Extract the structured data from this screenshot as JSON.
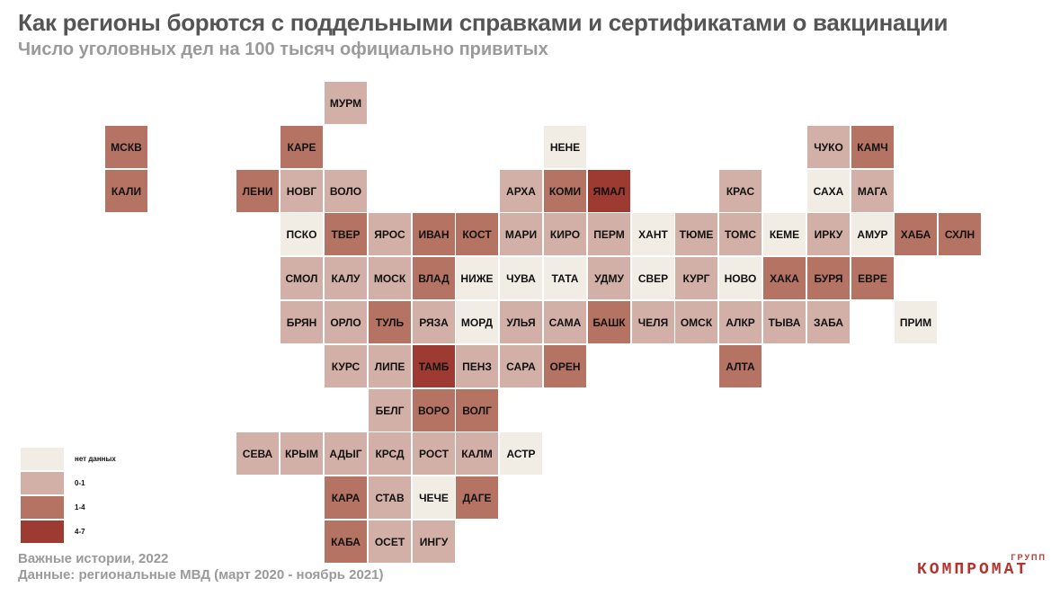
{
  "title": "Как регионы борются с поддельными справками и сертификатами о вакцинации",
  "subtitle": "Число уголовных дел на 100 тысяч официально привитых",
  "colors": {
    "nodata": "#f1ece4",
    "c0_1": "#d3b0a7",
    "c1_4": "#b57364",
    "c4_7": "#9d3a31"
  },
  "legend": [
    {
      "category": "nodata",
      "label": "нет данных"
    },
    {
      "category": "c0_1",
      "label": "0-1"
    },
    {
      "category": "c1_4",
      "label": "1-4"
    },
    {
      "category": "c4_7",
      "label": "4-7"
    }
  ],
  "regions": [
    {
      "code": "МУРМ",
      "col": 5,
      "row": 0,
      "cat": "c0_1"
    },
    {
      "code": "МСКВ",
      "col": 0,
      "row": 1,
      "cat": "c1_4"
    },
    {
      "code": "КАРЕ",
      "col": 4,
      "row": 1,
      "cat": "c1_4"
    },
    {
      "code": "НЕНЕ",
      "col": 10,
      "row": 1,
      "cat": "nodata"
    },
    {
      "code": "ЧУКО",
      "col": 16,
      "row": 1,
      "cat": "c0_1"
    },
    {
      "code": "КАМЧ",
      "col": 17,
      "row": 1,
      "cat": "c1_4"
    },
    {
      "code": "КАЛИ",
      "col": 0,
      "row": 2,
      "cat": "c1_4"
    },
    {
      "code": "ЛЕНИ",
      "col": 3,
      "row": 2,
      "cat": "c1_4"
    },
    {
      "code": "НОВГ",
      "col": 4,
      "row": 2,
      "cat": "c0_1"
    },
    {
      "code": "ВОЛО",
      "col": 5,
      "row": 2,
      "cat": "c0_1"
    },
    {
      "code": "АРХА",
      "col": 9,
      "row": 2,
      "cat": "c0_1"
    },
    {
      "code": "КОМИ",
      "col": 10,
      "row": 2,
      "cat": "c1_4"
    },
    {
      "code": "ЯМАЛ",
      "col": 11,
      "row": 2,
      "cat": "c4_7"
    },
    {
      "code": "КРАС",
      "col": 14,
      "row": 2,
      "cat": "c0_1"
    },
    {
      "code": "САХА",
      "col": 16,
      "row": 2,
      "cat": "nodata"
    },
    {
      "code": "МАГА",
      "col": 17,
      "row": 2,
      "cat": "c0_1"
    },
    {
      "code": "ПСКО",
      "col": 4,
      "row": 3,
      "cat": "nodata"
    },
    {
      "code": "ТВЕР",
      "col": 5,
      "row": 3,
      "cat": "c1_4"
    },
    {
      "code": "ЯРОС",
      "col": 6,
      "row": 3,
      "cat": "c0_1"
    },
    {
      "code": "ИВАН",
      "col": 7,
      "row": 3,
      "cat": "c1_4"
    },
    {
      "code": "КОСТ",
      "col": 8,
      "row": 3,
      "cat": "c1_4"
    },
    {
      "code": "МАРИ",
      "col": 9,
      "row": 3,
      "cat": "c0_1"
    },
    {
      "code": "КИРО",
      "col": 10,
      "row": 3,
      "cat": "c0_1"
    },
    {
      "code": "ПЕРМ",
      "col": 11,
      "row": 3,
      "cat": "c0_1"
    },
    {
      "code": "ХАНТ",
      "col": 12,
      "row": 3,
      "cat": "nodata"
    },
    {
      "code": "ТЮМЕ",
      "col": 13,
      "row": 3,
      "cat": "c0_1"
    },
    {
      "code": "ТОМС",
      "col": 14,
      "row": 3,
      "cat": "c0_1"
    },
    {
      "code": "КЕМЕ",
      "col": 15,
      "row": 3,
      "cat": "nodata"
    },
    {
      "code": "ИРКУ",
      "col": 16,
      "row": 3,
      "cat": "c0_1"
    },
    {
      "code": "АМУР",
      "col": 17,
      "row": 3,
      "cat": "nodata"
    },
    {
      "code": "ХАБА",
      "col": 18,
      "row": 3,
      "cat": "c1_4"
    },
    {
      "code": "СХЛН",
      "col": 19,
      "row": 3,
      "cat": "c1_4"
    },
    {
      "code": "СМОЛ",
      "col": 4,
      "row": 4,
      "cat": "c0_1"
    },
    {
      "code": "КАЛУ",
      "col": 5,
      "row": 4,
      "cat": "c0_1"
    },
    {
      "code": "МОСК",
      "col": 6,
      "row": 4,
      "cat": "c0_1"
    },
    {
      "code": "ВЛАД",
      "col": 7,
      "row": 4,
      "cat": "c1_4"
    },
    {
      "code": "НИЖЕ",
      "col": 8,
      "row": 4,
      "cat": "nodata"
    },
    {
      "code": "ЧУВА",
      "col": 9,
      "row": 4,
      "cat": "nodata"
    },
    {
      "code": "ТАТА",
      "col": 10,
      "row": 4,
      "cat": "nodata"
    },
    {
      "code": "УДМУ",
      "col": 11,
      "row": 4,
      "cat": "c0_1"
    },
    {
      "code": "СВЕР",
      "col": 12,
      "row": 4,
      "cat": "nodata"
    },
    {
      "code": "КУРГ",
      "col": 13,
      "row": 4,
      "cat": "c0_1"
    },
    {
      "code": "НОВО",
      "col": 14,
      "row": 4,
      "cat": "nodata"
    },
    {
      "code": "ХАКА",
      "col": 15,
      "row": 4,
      "cat": "c1_4"
    },
    {
      "code": "БУРЯ",
      "col": 16,
      "row": 4,
      "cat": "c1_4"
    },
    {
      "code": "ЕВРЕ",
      "col": 17,
      "row": 4,
      "cat": "c1_4"
    },
    {
      "code": "БРЯН",
      "col": 4,
      "row": 5,
      "cat": "c0_1"
    },
    {
      "code": "ОРЛО",
      "col": 5,
      "row": 5,
      "cat": "c0_1"
    },
    {
      "code": "ТУЛЬ",
      "col": 6,
      "row": 5,
      "cat": "c1_4"
    },
    {
      "code": "РЯЗА",
      "col": 7,
      "row": 5,
      "cat": "c0_1"
    },
    {
      "code": "МОРД",
      "col": 8,
      "row": 5,
      "cat": "nodata"
    },
    {
      "code": "УЛЬЯ",
      "col": 9,
      "row": 5,
      "cat": "c0_1"
    },
    {
      "code": "САМА",
      "col": 10,
      "row": 5,
      "cat": "c0_1"
    },
    {
      "code": "БАШК",
      "col": 11,
      "row": 5,
      "cat": "c1_4"
    },
    {
      "code": "ЧЕЛЯ",
      "col": 12,
      "row": 5,
      "cat": "c0_1"
    },
    {
      "code": "ОМСК",
      "col": 13,
      "row": 5,
      "cat": "c0_1"
    },
    {
      "code": "АЛКР",
      "col": 14,
      "row": 5,
      "cat": "c0_1"
    },
    {
      "code": "ТЫВА",
      "col": 15,
      "row": 5,
      "cat": "c0_1"
    },
    {
      "code": "ЗАБА",
      "col": 16,
      "row": 5,
      "cat": "c0_1"
    },
    {
      "code": "ПРИМ",
      "col": 18,
      "row": 5,
      "cat": "nodata"
    },
    {
      "code": "КУРС",
      "col": 5,
      "row": 6,
      "cat": "c0_1"
    },
    {
      "code": "ЛИПЕ",
      "col": 6,
      "row": 6,
      "cat": "c0_1"
    },
    {
      "code": "ТАМБ",
      "col": 7,
      "row": 6,
      "cat": "c4_7"
    },
    {
      "code": "ПЕНЗ",
      "col": 8,
      "row": 6,
      "cat": "c0_1"
    },
    {
      "code": "САРА",
      "col": 9,
      "row": 6,
      "cat": "c0_1"
    },
    {
      "code": "ОРЕН",
      "col": 10,
      "row": 6,
      "cat": "c1_4"
    },
    {
      "code": "АЛТА",
      "col": 14,
      "row": 6,
      "cat": "c1_4"
    },
    {
      "code": "БЕЛГ",
      "col": 6,
      "row": 7,
      "cat": "c0_1"
    },
    {
      "code": "ВОРО",
      "col": 7,
      "row": 7,
      "cat": "c1_4"
    },
    {
      "code": "ВОЛГ",
      "col": 8,
      "row": 7,
      "cat": "c1_4"
    },
    {
      "code": "СЕВА",
      "col": 3,
      "row": 8,
      "cat": "c0_1"
    },
    {
      "code": "КРЫМ",
      "col": 4,
      "row": 8,
      "cat": "c0_1"
    },
    {
      "code": "АДЫГ",
      "col": 5,
      "row": 8,
      "cat": "c0_1"
    },
    {
      "code": "КРСД",
      "col": 6,
      "row": 8,
      "cat": "c0_1"
    },
    {
      "code": "РОСТ",
      "col": 7,
      "row": 8,
      "cat": "c0_1"
    },
    {
      "code": "КАЛМ",
      "col": 8,
      "row": 8,
      "cat": "c0_1"
    },
    {
      "code": "АСТР",
      "col": 9,
      "row": 8,
      "cat": "nodata"
    },
    {
      "code": "КАРА",
      "col": 5,
      "row": 9,
      "cat": "c1_4"
    },
    {
      "code": "СТАВ",
      "col": 6,
      "row": 9,
      "cat": "c0_1"
    },
    {
      "code": "ЧЕЧЕ",
      "col": 7,
      "row": 9,
      "cat": "nodata"
    },
    {
      "code": "ДАГЕ",
      "col": 8,
      "row": 9,
      "cat": "c1_4"
    },
    {
      "code": "КАБА",
      "col": 5,
      "row": 10,
      "cat": "c1_4"
    },
    {
      "code": "ОСЕТ",
      "col": 6,
      "row": 10,
      "cat": "c0_1"
    },
    {
      "code": "ИНГУ",
      "col": 7,
      "row": 10,
      "cat": "c0_1"
    }
  ],
  "footer": {
    "line1": "Важные истории, 2022",
    "line2": "Данные: региональные МВД (март 2020 - ноябрь 2021)"
  },
  "logo": {
    "main": "КОМПРОМАТ",
    "sub": "ГРУПП"
  }
}
